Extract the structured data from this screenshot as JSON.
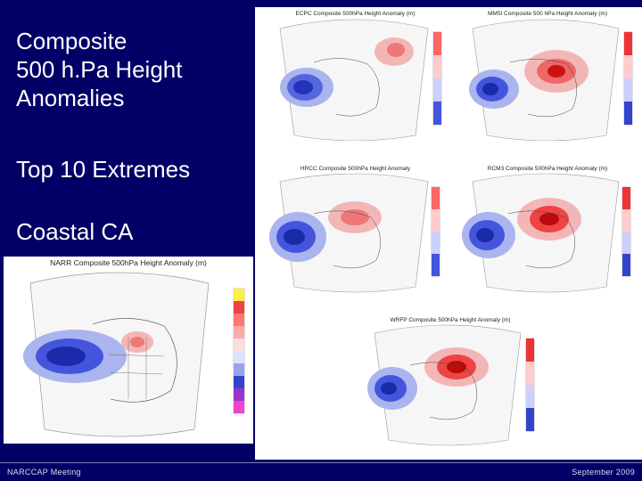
{
  "slide": {
    "title_lines": [
      "Composite",
      "500 h.Pa Height",
      "Anomalies"
    ],
    "subtitle_1": "Top 10 Extremes",
    "subtitle_2": "Coastal CA"
  },
  "maps": [
    {
      "id": "ecpc",
      "title": "ECPC Composite 500hPa Height Anomaly (m)"
    },
    {
      "id": "mm5i",
      "title": "MM5I Composite 500 hPa Height Anomaly (m)"
    },
    {
      "id": "hrcc",
      "title": "HRCC Composite 500hPa Height Anomaly"
    },
    {
      "id": "rcm3",
      "title": "RCM3 Composite 500hPa Height Anomaly (m)"
    },
    {
      "id": "narr",
      "title": "NARR Composite 500hPa Height Anomaly (m)"
    },
    {
      "id": "wrfp",
      "title": "WRFP Composite 500hPa Height Anomaly (m)"
    }
  ],
  "footer": {
    "left": "NARCCAP Meeting",
    "right": "September 2009"
  },
  "colors": {
    "background": "#000066",
    "negative_anomaly": "#2233cc",
    "positive_anomaly": "#dd2222"
  }
}
